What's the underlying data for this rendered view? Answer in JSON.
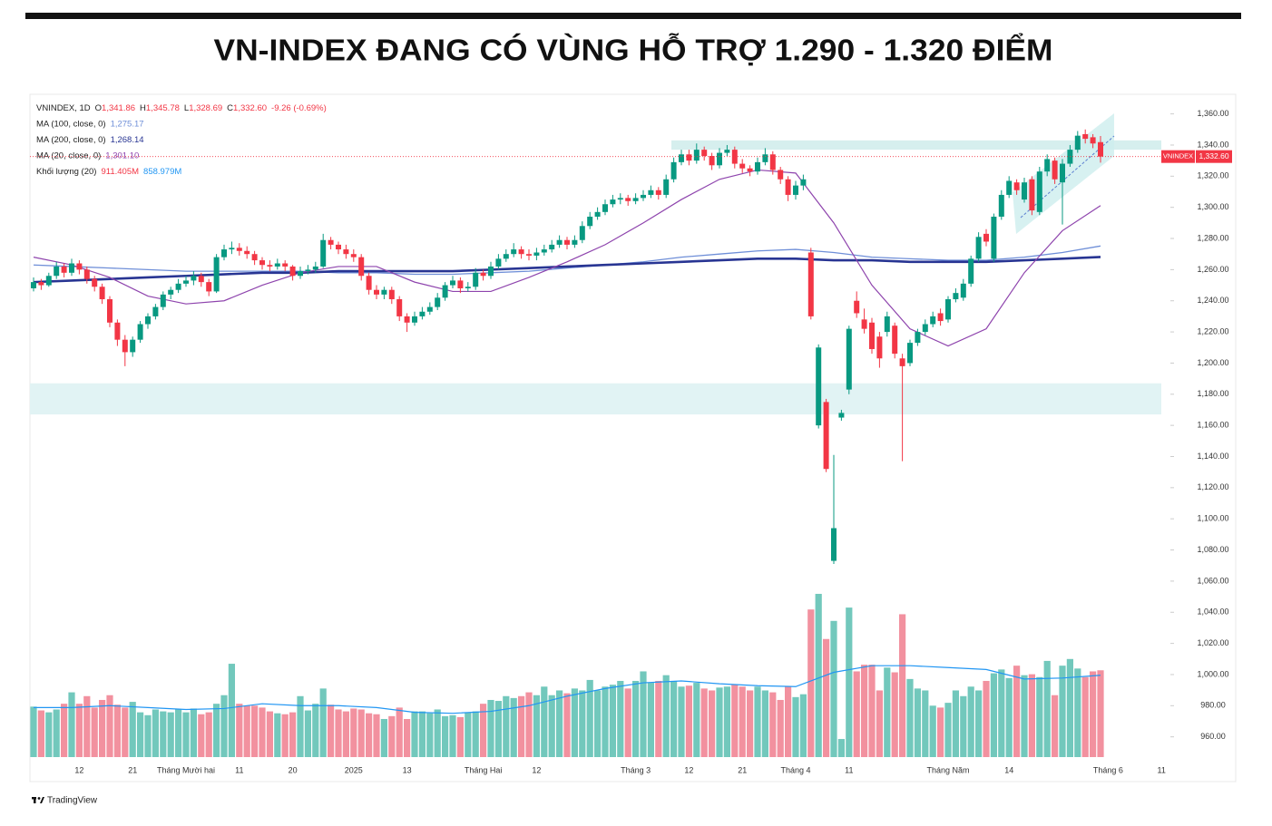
{
  "chart_data": {
    "type": "candlestick",
    "title": "VN-INDEX ĐANG CÓ VÙNG HỖ TRỢ 1.290 - 1.320 ĐIỂM",
    "categories": [
      null,
      null,
      null,
      null,
      null,
      null,
      "12",
      null,
      null,
      null,
      null,
      null,
      null,
      "21",
      null,
      null,
      null,
      null,
      null,
      null,
      "Tháng Mười hai",
      null,
      null,
      null,
      null,
      null,
      null,
      "11",
      null,
      null,
      null,
      null,
      null,
      null,
      "20",
      null,
      null,
      null,
      null,
      null,
      null,
      null,
      "2025",
      null,
      null,
      null,
      null,
      null,
      null,
      "13",
      null,
      null,
      null,
      null,
      null,
      null,
      null,
      null,
      null,
      "Tháng Hai",
      null,
      null,
      null,
      null,
      null,
      null,
      "12",
      null,
      null,
      null,
      null,
      null,
      null,
      null,
      null,
      null,
      null,
      null,
      null,
      "Tháng 3",
      null,
      null,
      null,
      null,
      null,
      null,
      "12",
      null,
      null,
      null,
      null,
      null,
      null,
      "21",
      null,
      null,
      null,
      null,
      null,
      null,
      "Tháng 4",
      null,
      null,
      null,
      null,
      null,
      null,
      "11",
      null,
      null,
      null,
      null,
      null,
      null,
      null,
      null,
      null,
      null,
      null,
      null,
      "Tháng Năm",
      null,
      null,
      null,
      null,
      null,
      null,
      null,
      "14",
      null,
      null,
      null,
      null,
      null,
      null,
      null,
      null,
      null,
      null,
      null,
      null,
      "Tháng 6",
      null,
      null,
      null,
      null,
      null,
      null,
      "11"
    ],
    "open": [
      1248,
      1252,
      1250,
      1256,
      1262,
      1258,
      1264,
      1260,
      1254,
      1249,
      1241,
      1226,
      1215,
      1207,
      1215,
      1225,
      1230,
      1236,
      1244,
      1247,
      1251,
      1253,
      1256,
      1252,
      1246,
      1268,
      1273,
      1274,
      1272,
      1270,
      1266,
      1263,
      1262,
      1264,
      1262,
      1256,
      1259,
      1260,
      1262,
      1279,
      1276,
      1273,
      1270,
      1268,
      1256,
      1247,
      1244,
      1247,
      1241,
      1230,
      1226,
      1230,
      1233,
      1236,
      1242,
      1250,
      1253,
      1248,
      1249,
      1258,
      1256,
      1262,
      1267,
      1270,
      1273,
      1270,
      1269,
      1271,
      1273,
      1276,
      1279,
      1276,
      1279,
      1288,
      1294,
      1297,
      1302,
      1305,
      1306,
      1304,
      1306,
      1308,
      1311,
      1308,
      1318,
      1329,
      1334,
      1330,
      1337,
      1333,
      1327,
      1335,
      1337,
      1328,
      1325,
      1323,
      1329,
      1334,
      1324,
      1318,
      1308,
      1314,
      1271,
      1160,
      1175,
      1073,
      1165,
      1183,
      1240,
      1228,
      1226,
      1217,
      1220,
      1224,
      1203,
      1200,
      1213,
      1220,
      1225,
      1232,
      1228,
      1241,
      1242,
      1251,
      1267,
      1283,
      1267,
      1294,
      1308,
      1316,
      1305,
      1318,
      1297,
      1323,
      1330,
      1316,
      1328,
      1337,
      1347,
      1345,
      1341.86,
      null,
      null,
      null,
      null,
      null,
      null,
      null,
      null
    ],
    "high": [
      1255,
      1254,
      1258,
      1265,
      1264,
      1267,
      1266,
      1262,
      1256,
      1251,
      1243,
      1228,
      1218,
      1217,
      1227,
      1232,
      1238,
      1246,
      1249,
      1254,
      1256,
      1259,
      1258,
      1254,
      1270,
      1276,
      1278,
      1277,
      1275,
      1272,
      1268,
      1266,
      1267,
      1266,
      1263,
      1262,
      1263,
      1265,
      1283,
      1281,
      1278,
      1276,
      1273,
      1270,
      1258,
      1250,
      1249,
      1249,
      1243,
      1232,
      1233,
      1236,
      1239,
      1245,
      1252,
      1256,
      1255,
      1252,
      1261,
      1260,
      1265,
      1270,
      1273,
      1277,
      1275,
      1273,
      1274,
      1276,
      1279,
      1282,
      1281,
      1282,
      1291,
      1297,
      1300,
      1305,
      1308,
      1309,
      1308,
      1309,
      1311,
      1314,
      1313,
      1321,
      1332,
      1337,
      1337,
      1341,
      1339,
      1335,
      1338,
      1340,
      1339,
      1331,
      1327,
      1332,
      1338,
      1336,
      1326,
      1320,
      1317,
      1321,
      1274,
      1212,
      1177,
      1141,
      1170,
      1224,
      1246,
      1235,
      1229,
      1220,
      1233,
      1226,
      1206,
      1215,
      1222,
      1228,
      1233,
      1235,
      1243,
      1248,
      1254,
      1269,
      1284,
      1286,
      1296,
      1311,
      1320,
      1318,
      1319,
      1320,
      1326,
      1334,
      1332,
      1331,
      1340,
      1349,
      1350,
      1347,
      1345.78,
      null,
      null,
      null,
      null,
      null,
      null,
      null,
      null
    ],
    "low": [
      1246,
      1247,
      1249,
      1254,
      1255,
      1256,
      1257,
      1251,
      1246,
      1238,
      1223,
      1211,
      1198,
      1204,
      1213,
      1222,
      1228,
      1234,
      1241,
      1245,
      1249,
      1250,
      1249,
      1243,
      1245,
      1266,
      1270,
      1269,
      1267,
      1263,
      1260,
      1259,
      1260,
      1259,
      1253,
      1254,
      1257,
      1258,
      1261,
      1273,
      1270,
      1267,
      1265,
      1253,
      1244,
      1241,
      1241,
      1238,
      1227,
      1220,
      1224,
      1228,
      1231,
      1234,
      1240,
      1248,
      1245,
      1246,
      1247,
      1253,
      1254,
      1260,
      1265,
      1268,
      1267,
      1266,
      1266,
      1269,
      1271,
      1274,
      1273,
      1274,
      1277,
      1286,
      1292,
      1295,
      1300,
      1302,
      1301,
      1302,
      1304,
      1306,
      1305,
      1306,
      1316,
      1327,
      1327,
      1328,
      1330,
      1324,
      1325,
      1333,
      1325,
      1322,
      1320,
      1321,
      1327,
      1321,
      1315,
      1304,
      1305,
      1311,
      1228,
      1158,
      1130,
      1071,
      1163,
      1180,
      1229,
      1219,
      1206,
      1197,
      1217,
      1203,
      1137,
      1198,
      1211,
      1218,
      1223,
      1224,
      1226,
      1239,
      1240,
      1249,
      1265,
      1275,
      1265,
      1292,
      1306,
      1308,
      1303,
      1295,
      1295,
      1320,
      1315,
      1289,
      1326,
      1335,
      1341,
      1338,
      1328.69,
      null,
      null,
      null,
      null,
      null,
      null,
      null,
      null
    ],
    "close": [
      1252,
      1250,
      1256,
      1262,
      1258,
      1264,
      1260,
      1254,
      1249,
      1241,
      1226,
      1215,
      1207,
      1215,
      1225,
      1230,
      1236,
      1244,
      1247,
      1251,
      1253,
      1256,
      1252,
      1246,
      1268,
      1273,
      1274,
      1272,
      1270,
      1266,
      1263,
      1262,
      1264,
      1262,
      1256,
      1259,
      1260,
      1262,
      1279,
      1276,
      1273,
      1270,
      1268,
      1256,
      1247,
      1244,
      1247,
      1241,
      1230,
      1226,
      1230,
      1233,
      1236,
      1242,
      1250,
      1253,
      1248,
      1249,
      1258,
      1256,
      1262,
      1267,
      1270,
      1273,
      1270,
      1269,
      1271,
      1273,
      1276,
      1279,
      1276,
      1279,
      1288,
      1294,
      1297,
      1302,
      1305,
      1306,
      1304,
      1306,
      1308,
      1311,
      1308,
      1318,
      1329,
      1334,
      1330,
      1337,
      1333,
      1327,
      1335,
      1337,
      1328,
      1325,
      1323,
      1329,
      1334,
      1324,
      1318,
      1308,
      1314,
      1318,
      1230,
      1210,
      1132,
      1094,
      1168,
      1222,
      1232,
      1222,
      1209,
      1203,
      1230,
      1206,
      1198,
      1213,
      1220,
      1225,
      1230,
      1227,
      1241,
      1245,
      1251,
      1267,
      1281,
      1278,
      1294,
      1308,
      1317,
      1311,
      1316,
      1298,
      1323,
      1331,
      1318,
      1328,
      1337,
      1346,
      1344,
      1341,
      1332.6,
      null,
      null,
      null,
      null,
      null,
      null,
      null,
      null
    ],
    "volume": [
      530,
      490,
      470,
      500,
      560,
      680,
      560,
      640,
      520,
      600,
      650,
      550,
      520,
      580,
      470,
      440,
      500,
      480,
      470,
      500,
      470,
      510,
      450,
      470,
      560,
      650,
      980,
      560,
      540,
      540,
      520,
      480,
      460,
      450,
      470,
      640,
      490,
      560,
      720,
      550,
      500,
      480,
      510,
      500,
      460,
      450,
      400,
      430,
      520,
      400,
      480,
      480,
      460,
      500,
      430,
      440,
      420,
      470,
      480,
      560,
      600,
      590,
      640,
      620,
      640,
      680,
      650,
      740,
      650,
      700,
      670,
      720,
      700,
      810,
      700,
      740,
      760,
      800,
      720,
      800,
      900,
      780,
      800,
      860,
      800,
      740,
      750,
      780,
      720,
      700,
      730,
      740,
      760,
      740,
      700,
      740,
      700,
      680,
      600,
      740,
      630,
      660,
      1550,
      1714,
      1240,
      1430,
      190,
      1570,
      900,
      970,
      970,
      700,
      940,
      890,
      1500,
      820,
      720,
      700,
      540,
      520,
      570,
      700,
      640,
      740,
      700,
      800,
      880,
      920,
      830,
      960,
      860,
      870,
      840,
      1010,
      650,
      960,
      1030,
      930,
      840,
      900,
      911.405,
      null,
      null,
      null,
      null,
      null,
      null,
      null,
      null
    ],
    "up_color": "#089981",
    "down_color": "#f23645",
    "up_volume_color": "#72c8bc",
    "down_volume_color": "#f2919f",
    "ylim": [
      947,
      1372
    ],
    "yticks": [
      {
        "value": 960,
        "label": "960.00"
      },
      {
        "value": 980,
        "label": "980.00"
      },
      {
        "value": 1000,
        "label": "1,000.00"
      },
      {
        "value": 1020,
        "label": "1,020.00"
      },
      {
        "value": 1040,
        "label": "1,040.00"
      },
      {
        "value": 1060,
        "label": "1,060.00"
      },
      {
        "value": 1080,
        "label": "1,080.00"
      },
      {
        "value": 1100,
        "label": "1,100.00"
      },
      {
        "value": 1120,
        "label": "1,120.00"
      },
      {
        "value": 1140,
        "label": "1,140.00"
      },
      {
        "value": 1160,
        "label": "1,160.00"
      },
      {
        "value": 1180,
        "label": "1,180.00"
      },
      {
        "value": 1200,
        "label": "1,200.00"
      },
      {
        "value": 1220,
        "label": "1,220.00"
      },
      {
        "value": 1240,
        "label": "1,240.00"
      },
      {
        "value": 1260,
        "label": "1,260.00"
      },
      {
        "value": 1280,
        "label": "1,280.00"
      },
      {
        "value": 1300,
        "label": "1,300.00"
      },
      {
        "value": 1320,
        "label": "1,320.00"
      },
      {
        "value": 1340,
        "label": "1,340.00"
      },
      {
        "value": 1360,
        "label": "1,360.00"
      }
    ],
    "volume_ylim": [
      0,
      6950
    ],
    "support_zone": [
      1167,
      1187
    ],
    "resistance_zone": [
      1337,
      1343
    ],
    "ma_x": [
      0,
      5,
      10,
      15,
      20,
      25,
      30,
      35,
      40,
      45,
      50,
      55,
      60,
      65,
      70,
      75,
      80,
      85,
      90,
      95,
      100,
      105,
      110,
      115,
      120,
      125,
      130,
      135,
      140
    ],
    "ma": [
      {
        "name": "MA (100, close, 0)",
        "color": "#6f8fd8",
        "width": 1.3,
        "last_label": "1,275.17",
        "values": [
          1263,
          1262,
          1261,
          1260,
          1259,
          1259,
          1259,
          1259,
          1258,
          1258,
          1257,
          1257,
          1258,
          1259,
          1261,
          1263,
          1265,
          1268,
          1270,
          1272,
          1273,
          1271,
          1268,
          1267,
          1266,
          1266,
          1268,
          1271,
          1275.17
        ]
      },
      {
        "name": "MA (200, close, 0)",
        "color": "#283593",
        "width": 2.6,
        "last_label": "1,268.14",
        "values": [
          1252,
          1253,
          1254,
          1255,
          1256,
          1257,
          1258,
          1258,
          1259,
          1259,
          1259,
          1259,
          1260,
          1261,
          1262,
          1263,
          1264,
          1265,
          1266,
          1267,
          1267,
          1266,
          1266,
          1265,
          1265,
          1265,
          1266,
          1267,
          1268.14
        ]
      },
      {
        "name": "MA (20, close, 0)",
        "color": "#8e44ad",
        "width": 1.2,
        "last_label": "1,301.10",
        "values": [
          1268,
          1263,
          1255,
          1243,
          1238,
          1240,
          1250,
          1258,
          1262,
          1262,
          1252,
          1246,
          1246,
          1255,
          1265,
          1276,
          1290,
          1305,
          1318,
          1324,
          1322,
          1290,
          1250,
          1222,
          1211,
          1222,
          1258,
          1285,
          1301.1
        ]
      }
    ],
    "volume_ma": {
      "color": "#2196f3",
      "values": [
        520,
        520,
        540,
        520,
        500,
        510,
        560,
        540,
        540,
        520,
        470,
        460,
        480,
        540,
        640,
        720,
        780,
        800,
        770,
        750,
        740,
        890,
        960,
        960,
        940,
        920,
        820,
        830,
        858.979
      ]
    },
    "ohlc_legend": {
      "label": "VNINDEX, 1D",
      "color": "#f23645",
      "items": [
        {
          "key": "O",
          "text": "1,341.86"
        },
        {
          "key": "H",
          "text": "1,345.78"
        },
        {
          "key": "L",
          "text": "1,328.69"
        },
        {
          "key": "C",
          "text": "1,332.60"
        },
        {
          "text": "-9.26 (-0.69%)"
        }
      ]
    },
    "volume_legend": {
      "label": "Khối lượng (20)",
      "last_label": "911.405M",
      "last_color": "#f23645",
      "ma_label": "858.979M"
    },
    "last_price": {
      "name": "VNINDEX",
      "label": "1,332.60"
    },
    "source": "TradingView"
  }
}
